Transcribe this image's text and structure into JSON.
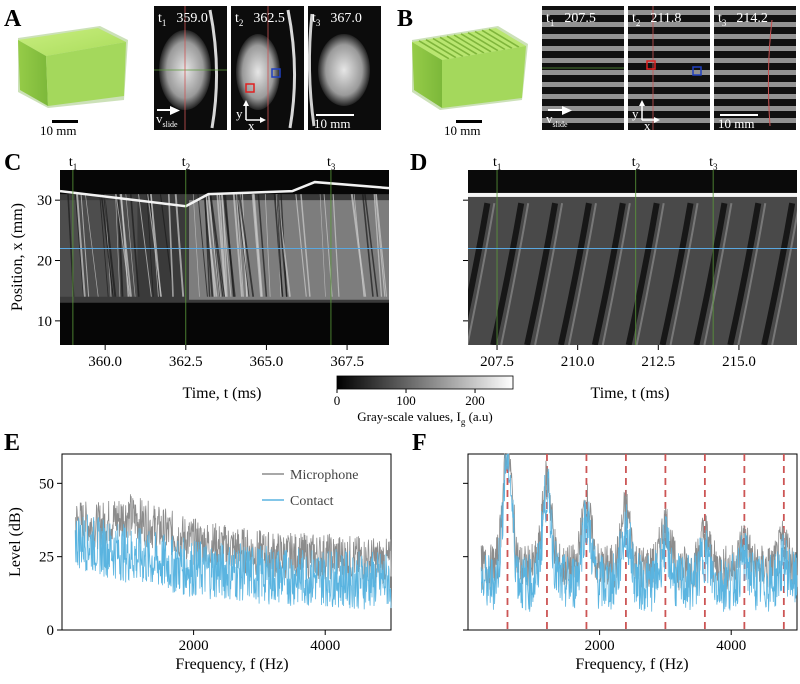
{
  "panel_labels": {
    "a": "A",
    "b": "B",
    "c": "C",
    "d": "D",
    "e": "E",
    "f": "F"
  },
  "colors": {
    "sample": "#b6e36a",
    "sample_dark": "#7fb53b",
    "microphone": "#8c8c8c",
    "contact": "#5ab4e0",
    "harmonic": "#cc5555",
    "marker_line": "#5b9a3a",
    "cursor_line": "#5aa8e0",
    "roi_red": "#e02020",
    "roi_blue": "#2040c0"
  },
  "panel_a": {
    "scale_label": "10 mm",
    "frames": [
      {
        "t": "t",
        "sub": "1",
        "value": "359.0"
      },
      {
        "t": "t",
        "sub": "2",
        "value": "362.5"
      },
      {
        "t": "t",
        "sub": "3",
        "value": "367.0"
      }
    ],
    "v_label": "v",
    "v_sub": "slide",
    "y_label": "y",
    "x_label": "x",
    "frame_scale_label": "10 mm"
  },
  "panel_b": {
    "scale_label": "10 mm",
    "frames": [
      {
        "t": "t",
        "sub": "1",
        "value": "207.5"
      },
      {
        "t": "t",
        "sub": "2",
        "value": "211.8"
      },
      {
        "t": "t",
        "sub": "3",
        "value": "214.2"
      }
    ],
    "v_label": "v",
    "v_sub": "slide",
    "y_label": "y",
    "x_label": "x",
    "frame_scale_label": "10 mm"
  },
  "colorbar": {
    "ticks": [
      "0",
      "100",
      "200"
    ],
    "range": [
      0,
      255
    ],
    "label_main": "Gray-scale values, I",
    "label_sub": "g",
    "label_unit": " (a.u)"
  },
  "chart_data": [
    {
      "id": "C",
      "type": "heatmap",
      "title": "",
      "xlabel": "Time, t (ms)",
      "ylabel": "Position, x (mm)",
      "xlim": [
        358.6,
        368.8
      ],
      "ylim": [
        6,
        35
      ],
      "xticks": [
        "360.0",
        "362.5",
        "365.0",
        "367.5"
      ],
      "xtick_values": [
        360.0,
        362.5,
        365.0,
        367.5
      ],
      "yticks": [
        "10",
        "20",
        "30"
      ],
      "ytick_values": [
        10,
        20,
        30
      ],
      "markers": [
        {
          "t": "t",
          "sub": "1",
          "time": 359.0
        },
        {
          "t": "t",
          "sub": "2",
          "time": 362.5
        },
        {
          "t": "t",
          "sub": "3",
          "time": 367.0
        }
      ],
      "cursor_position": 22
    },
    {
      "id": "D",
      "type": "heatmap",
      "title": "",
      "xlabel": "Time, t (ms)",
      "ylabel": "",
      "xlim": [
        206.6,
        216.8
      ],
      "ylim": [
        6,
        35
      ],
      "xticks": [
        "207.5",
        "210.0",
        "212.5",
        "215.0"
      ],
      "xtick_values": [
        207.5,
        210.0,
        212.5,
        215.0
      ],
      "yticks": [
        "10",
        "20",
        "30"
      ],
      "ytick_values": [
        10,
        20,
        30
      ],
      "show_ytick_labels": false,
      "markers": [
        {
          "t": "t",
          "sub": "1",
          "time": 207.5
        },
        {
          "t": "t",
          "sub": "2",
          "time": 211.8
        },
        {
          "t": "t",
          "sub": "3",
          "time": 214.2
        }
      ],
      "cursor_position": 22
    },
    {
      "id": "E",
      "type": "line",
      "title": "",
      "xlabel": "Frequency, f (Hz)",
      "ylabel": "Level (dB)",
      "xlim": [
        0,
        5000
      ],
      "ylim": [
        0,
        60
      ],
      "xticks": [
        "2000",
        "4000"
      ],
      "xtick_values": [
        2000,
        4000
      ],
      "yticks": [
        "0",
        "25",
        "50"
      ],
      "ytick_values": [
        0,
        25,
        50
      ],
      "legend_position": "top-right",
      "series": [
        {
          "name": "Microphone",
          "anchors_f": [
            200,
            500,
            1000,
            1500,
            2000,
            2500,
            3000,
            3500,
            4000,
            4500,
            5000
          ],
          "anchors_level": [
            38,
            36,
            40,
            35,
            31,
            29,
            27,
            26,
            26,
            25,
            24
          ]
        },
        {
          "name": "Contact",
          "anchors_f": [
            200,
            500,
            1000,
            1500,
            2000,
            2500,
            3000,
            3500,
            4000,
            4500,
            5000
          ],
          "anchors_level": [
            32,
            30,
            27,
            24,
            22,
            21,
            20,
            19,
            19,
            18,
            18
          ]
        }
      ]
    },
    {
      "id": "F",
      "type": "line",
      "title": "",
      "xlabel": "Frequency, f (Hz)",
      "ylabel": "",
      "xlim": [
        0,
        5000
      ],
      "ylim": [
        0,
        60
      ],
      "xticks": [
        "2000",
        "4000"
      ],
      "xtick_values": [
        2000,
        4000
      ],
      "yticks": [
        "0",
        "25",
        "50"
      ],
      "ytick_values": [
        0,
        25,
        50
      ],
      "show_ytick_labels": false,
      "harmonics_hz": [
        600,
        1200,
        1800,
        2400,
        3000,
        3600,
        4200,
        4800
      ],
      "series": [
        {
          "name": "Microphone",
          "baseline": 22,
          "peaks": [
            63,
            52,
            44,
            42,
            37,
            34,
            32,
            31
          ]
        },
        {
          "name": "Contact",
          "baseline": 17,
          "peaks": [
            60,
            48,
            39,
            35,
            30,
            27,
            25,
            24
          ]
        }
      ]
    }
  ]
}
